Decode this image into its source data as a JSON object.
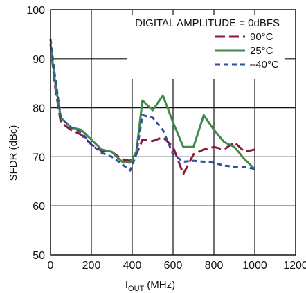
{
  "chart_data": {
    "type": "line",
    "title": "",
    "xlabel": "MHz",
    "xlabel_main": "f",
    "xlabel_sub": "OUT",
    "xlabel_unit": "(MHz)",
    "ylabel": "SFDR (dBc)",
    "xlim": [
      0,
      1200
    ],
    "ylim": [
      50,
      100
    ],
    "xticks": [
      "0",
      "200",
      "400",
      "600",
      "800",
      "1000",
      "1200"
    ],
    "yticks": [
      "50",
      "60",
      "70",
      "80",
      "90",
      "100"
    ],
    "grid": true,
    "legend_title": "DIGITAL AMPLITUDE = 0dBFS",
    "legend_position": "top-right",
    "series": [
      {
        "name": "90°C",
        "color": "#8b1a3a",
        "dash": "long-dash",
        "x": [
          0,
          20,
          50,
          100,
          150,
          200,
          250,
          300,
          350,
          390,
          420,
          450,
          500,
          550,
          600,
          650,
          700,
          750,
          800,
          850,
          900,
          950,
          1000
        ],
        "y": [
          93,
          85,
          77,
          75.5,
          74.5,
          72.5,
          71.2,
          71,
          69.5,
          69.2,
          70.5,
          73.5,
          73.2,
          74,
          72,
          66.5,
          70.5,
          71.5,
          72,
          71.5,
          73,
          71,
          71.5
        ]
      },
      {
        "name": "25°C",
        "color": "#3e8a4a",
        "dash": "solid",
        "x": [
          0,
          20,
          50,
          100,
          150,
          200,
          250,
          300,
          350,
          390,
          420,
          450,
          500,
          550,
          600,
          650,
          700,
          750,
          800,
          850,
          900,
          950,
          1000
        ],
        "y": [
          93,
          86,
          78,
          76,
          75.5,
          73.5,
          71.5,
          71,
          69,
          68.8,
          71,
          81.5,
          79.5,
          82.5,
          77,
          72,
          72,
          78.5,
          75.5,
          73,
          72,
          69.5,
          67.5
        ]
      },
      {
        "name": "–40°C",
        "color": "#2f4fa3",
        "dash": "short-dash",
        "x": [
          0,
          20,
          50,
          100,
          150,
          200,
          250,
          300,
          350,
          390,
          420,
          450,
          500,
          550,
          600,
          650,
          700,
          750,
          800,
          850,
          900,
          950,
          1000
        ],
        "y": [
          94,
          87,
          78,
          76,
          75,
          72.5,
          70.8,
          70,
          68.5,
          67.2,
          70.5,
          78.5,
          78,
          75.5,
          70.5,
          69,
          69.2,
          69,
          68.8,
          68.2,
          68,
          68,
          67.5
        ]
      }
    ]
  }
}
